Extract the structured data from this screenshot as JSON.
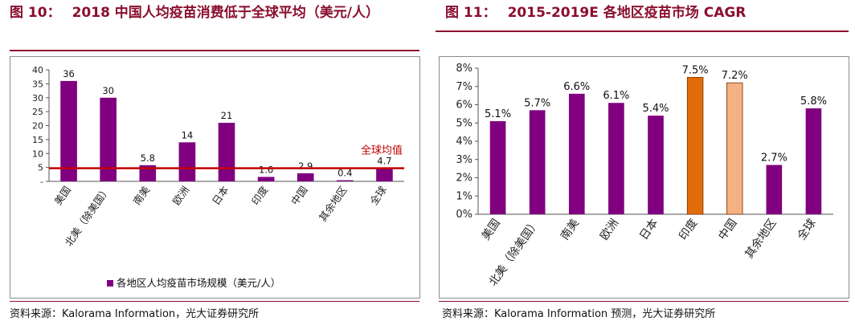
{
  "left": {
    "figure_number": "图 10：",
    "title": "2018 中国人均疫苗消费低于全球平均（美元/人）",
    "source": "资料来源：Kalorama Information，光大证券研究所",
    "avg_label": "全球均值",
    "legend_label": "各地区人均疫苗市场规模（美元/人）",
    "bar_color": "#800080",
    "line_color": "#c00000"
  },
  "right": {
    "figure_number": "图 11：",
    "title": "2015-2019E 各地区疫苗市场 CAGR",
    "source": "资料来源：Kalorama Information 预测，光大证券研究所",
    "bar_color": "#800080",
    "india_color": "#e36c0a",
    "china_color": "#f4b183"
  },
  "chart_data": [
    {
      "type": "bar",
      "title": "2018 中国人均疫苗消费低于全球平均（美元/人）",
      "categories": [
        "美国",
        "北美（除美国）",
        "南美",
        "欧洲",
        "日本",
        "印度",
        "中国",
        "其余地区",
        "全球"
      ],
      "series": [
        {
          "name": "各地区人均疫苗市场规模（美元/人）",
          "values": [
            36,
            30,
            5.8,
            14,
            21,
            1.6,
            2.9,
            0.4,
            4.7
          ]
        }
      ],
      "data_labels": [
        "36",
        "30",
        "5.8",
        "14",
        "21",
        "1.6",
        "2.9",
        "0.4",
        "4.7"
      ],
      "reference_line": {
        "label": "全球均值",
        "value": 4.7
      },
      "ylim": [
        0,
        40
      ],
      "yticks": [
        "-",
        "5",
        "10",
        "15",
        "20",
        "25",
        "30",
        "35",
        "40"
      ],
      "grid": false,
      "legend": "bottom"
    },
    {
      "type": "bar",
      "title": "2015-2019E 各地区疫苗市场 CAGR",
      "categories": [
        "美国",
        "北美（除美国）",
        "南美",
        "欧洲",
        "日本",
        "印度",
        "中国",
        "其余地区",
        "全球"
      ],
      "series": [
        {
          "values": [
            5.1,
            5.7,
            6.6,
            6.1,
            5.4,
            7.5,
            7.2,
            2.7,
            5.8
          ]
        }
      ],
      "data_labels": [
        "5.1%",
        "5.7%",
        "6.6%",
        "6.1%",
        "5.4%",
        "7.5%",
        "7.2%",
        "2.7%",
        "5.8%"
      ],
      "highlight": {
        "印度": "#e36c0a",
        "中国": "#f4b183"
      },
      "ylim": [
        0,
        8
      ],
      "yticks": [
        "0%",
        "1%",
        "2%",
        "3%",
        "4%",
        "5%",
        "6%",
        "7%",
        "8%"
      ],
      "grid": false,
      "legend": "none"
    }
  ]
}
